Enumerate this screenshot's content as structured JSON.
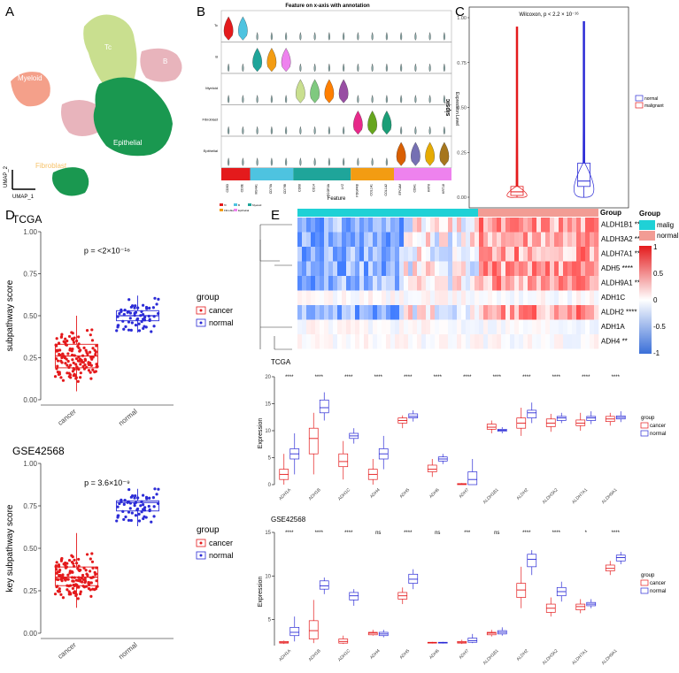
{
  "panels": {
    "A": "A",
    "B": "B",
    "C": "C",
    "D": "D",
    "E": "E"
  },
  "umap": {
    "xlabel": "UMAP_1",
    "ylabel": "UMAP_2",
    "clusters": [
      {
        "label": "Tc",
        "color": "#c9df8f"
      },
      {
        "label": "B",
        "color": "#e8b4bc"
      },
      {
        "label": "Myeloid",
        "color": "#f4a08a"
      },
      {
        "label": "Epithelial",
        "color": "#1a9850"
      },
      {
        "label": "Fibroblast",
        "color": "#f6c36b"
      }
    ]
  },
  "violin": {
    "title": "Feature on x-axis with annotation",
    "xlabel": "Feature",
    "rows": [
      "Tc",
      "B",
      "Myeloid",
      "Fibroblast",
      "Epithelial"
    ],
    "features": [
      "CD3D",
      "CD3E",
      "MS4A1",
      "CD79A",
      "CD79B",
      "CD68",
      "CD14",
      "FCGR3A",
      "LYZ",
      "PDGFRB",
      "COL1A1",
      "COL1A2",
      "EPCAM",
      "CDH1",
      "KRT8",
      "KRT18"
    ],
    "groups": [
      {
        "name": "Tc",
        "color": "#e41a1c",
        "span": 2
      },
      {
        "name": "B",
        "color": "#4ec3e0",
        "span": 3
      },
      {
        "name": "Myeloid",
        "color": "#1fa59a",
        "span": 4
      },
      {
        "name": "Fibroblast",
        "color": "#f39c12",
        "span": 3
      },
      {
        "name": "Epithelial",
        "color": "#ee82ee",
        "span": 4
      }
    ],
    "ylabel": "Expression Level"
  },
  "chart_data": [
    {
      "panel": "C",
      "type": "box",
      "title": "Wilcoxon, p < 2.2 × 10⁻¹⁶",
      "ylabel": "sipsic",
      "categories": [
        "malignant",
        "normal"
      ],
      "ylim": [
        0,
        1
      ],
      "yticks": [
        "0.00",
        "0.25",
        "0.50",
        "0.75",
        "1.00"
      ],
      "legend": [
        "normal",
        "malignant"
      ],
      "boxes": [
        {
          "name": "malignant",
          "color": "#e41a1c",
          "q1": 0.01,
          "median": 0.03,
          "q3": 0.06,
          "whisker_low": 0.0,
          "whisker_high": 0.95
        },
        {
          "name": "normal",
          "color": "#2b2bd6",
          "q1": 0.06,
          "median": 0.09,
          "q3": 0.19,
          "whisker_low": 0.0,
          "whisker_high": 0.98
        }
      ]
    },
    {
      "panel": "D-top",
      "type": "box",
      "title": "TCGA",
      "ylabel": "subpathway score",
      "categories": [
        "cancer",
        "normal"
      ],
      "ylim": [
        0,
        1
      ],
      "yticks": [
        "0.00",
        "0.25",
        "0.50",
        "0.75",
        "1.00"
      ],
      "annotation": "p = <2×10⁻¹⁶",
      "legend_title": "group",
      "legend": [
        "cancer",
        "normal"
      ],
      "boxes": [
        {
          "name": "cancer",
          "color": "#e41a1c",
          "q1": 0.19,
          "median": 0.26,
          "q3": 0.33,
          "whisker_low": 0.05,
          "whisker_high": 0.5
        },
        {
          "name": "normal",
          "color": "#2b2bd6",
          "q1": 0.47,
          "median": 0.5,
          "q3": 0.53,
          "whisker_low": 0.4,
          "whisker_high": 0.62
        }
      ]
    },
    {
      "panel": "D-bottom",
      "type": "box",
      "title": "GSE42568",
      "ylabel": "key subpathway score",
      "categories": [
        "cancer",
        "normal"
      ],
      "ylim": [
        0,
        1
      ],
      "yticks": [
        "0.00",
        "0.25",
        "0.50",
        "0.75",
        "1.00"
      ],
      "annotation": "p = 3.6×10⁻⁹",
      "legend_title": "group",
      "legend": [
        "cancer",
        "normal"
      ],
      "boxes": [
        {
          "name": "cancer",
          "color": "#e41a1c",
          "q1": 0.28,
          "median": 0.33,
          "q3": 0.39,
          "whisker_low": 0.15,
          "whisker_high": 0.59
        },
        {
          "name": "normal",
          "color": "#2b2bd6",
          "q1": 0.72,
          "median": 0.77,
          "q3": 0.78,
          "whisker_low": 0.63,
          "whisker_high": 0.85
        }
      ]
    },
    {
      "panel": "E-heatmap",
      "type": "heatmap",
      "rows": [
        "ALDH1B1 ****",
        "ALDH3A2 ****",
        "ALDH7A1 ****",
        "ADH5 ****",
        "ALDH9A1 ****",
        "ADH1C",
        "ALDH2 ****",
        "ADH1A",
        "ADH4 **"
      ],
      "group_bar": [
        {
          "name": "malig",
          "color": "#1fd1d6",
          "fraction": 0.6
        },
        {
          "name": "normal",
          "color": "#f29c94",
          "fraction": 0.4
        }
      ],
      "legend_title": "Group",
      "legend": [
        "malig",
        "normal"
      ],
      "colorbar": {
        "min": -1,
        "max": 1,
        "ticks": [
          "1",
          "0.5",
          "0",
          "-0.5",
          "-1"
        ]
      }
    },
    {
      "panel": "E-TCGA",
      "type": "box",
      "title": "TCGA",
      "ylabel": "Expression",
      "ylim": [
        0,
        20
      ],
      "yticks": [
        "0",
        "5",
        "10",
        "15",
        "20"
      ],
      "categories": [
        "ADH1A",
        "ADH1B",
        "ADH1C",
        "ADH4",
        "ADH5",
        "ADH6",
        "ADH7",
        "ALDH1B1",
        "ALDH2",
        "ALDH3A2",
        "ALDH7A1",
        "ALDH9A1"
      ],
      "significance": [
        "****",
        "****",
        "****",
        "****",
        "****",
        "****",
        "****",
        "****",
        "****",
        "****",
        "****",
        "****"
      ],
      "legend_title": "group",
      "legend": [
        "cancer",
        "normal"
      ],
      "series": [
        {
          "name": "cancer",
          "color": "#e41a1c",
          "boxes": [
            [
              1,
              2,
              3,
              0,
              6
            ],
            [
              6,
              9,
              11,
              2,
              14
            ],
            [
              3.5,
              4.5,
              6,
              1,
              8.5
            ],
            [
              1,
              2,
              3,
              0,
              5
            ],
            [
              12,
              12.5,
              13,
              11,
              13.5
            ],
            [
              2.5,
              3,
              3.8,
              1.5,
              5
            ],
            [
              0,
              0.1,
              0.2,
              0,
              0.3
            ],
            [
              10.8,
              11.2,
              11.8,
              10,
              12.5
            ],
            [
              11,
              12,
              13,
              9.5,
              15
            ],
            [
              11.3,
              12,
              12.8,
              10.3,
              13.8
            ],
            [
              11.5,
              12,
              12.6,
              10.5,
              14
            ],
            [
              12.3,
              12.8,
              13.3,
              11.5,
              14
            ]
          ]
        },
        {
          "name": "normal",
          "color": "#2b2bd6",
          "boxes": [
            [
              5,
              6,
              7,
              2,
              10
            ],
            [
              14,
              15,
              16.5,
              12.5,
              18
            ],
            [
              9,
              9.5,
              10,
              8,
              11
            ],
            [
              5,
              6,
              7,
              3,
              9.5
            ],
            [
              13,
              13.3,
              13.8,
              12.3,
              14.5
            ],
            [
              4.6,
              5,
              5.4,
              4,
              6
            ],
            [
              0,
              1,
              2.5,
              0,
              5
            ],
            [
              10.4,
              10.6,
              10.8,
              10,
              11.2
            ],
            [
              13,
              14,
              14.5,
              12,
              16
            ],
            [
              12.5,
              13,
              13.3,
              12,
              14
            ],
            [
              12.5,
              13,
              13.3,
              11.8,
              14.3
            ],
            [
              12.8,
              13.1,
              13.4,
              12.2,
              14.3
            ]
          ]
        }
      ]
    },
    {
      "panel": "E-GSE42568",
      "type": "box",
      "title": "GSE42568",
      "ylabel": "Expression",
      "ylim": [
        2,
        15
      ],
      "yticks": [
        "5",
        "10",
        "15"
      ],
      "categories": [
        "ADH1A",
        "ADH1B",
        "ADH1C",
        "ADH4",
        "ADH5",
        "ADH6",
        "ADH7",
        "ALDH1B1",
        "ALDH2",
        "ALDH3A2",
        "ALDH7A1",
        "ALDH9A1"
      ],
      "significance": [
        "****",
        "****",
        "****",
        "ns",
        "****",
        "ns",
        "***",
        "ns",
        "****",
        "****",
        "*",
        "****"
      ],
      "legend_title": "group",
      "legend": [
        "cancer",
        "normal"
      ],
      "series": [
        {
          "name": "cancer",
          "color": "#e41a1c",
          "boxes": [
            [
              2.3,
              2.4,
              2.5,
              2.2,
              2.6
            ],
            [
              2.8,
              3.8,
              5,
              2.3,
              7.5
            ],
            [
              2.3,
              2.5,
              2.8,
              2.2,
              3.2
            ],
            [
              3.3,
              3.5,
              3.6,
              3.2,
              3.9
            ],
            [
              7.6,
              8,
              8.4,
              7,
              9
            ],
            [
              2.3,
              2.35,
              2.4,
              2.25,
              2.45
            ],
            [
              2.3,
              2.4,
              2.5,
              2.2,
              2.7
            ],
            [
              3.3,
              3.5,
              3.6,
              3.1,
              3.9
            ],
            [
              7.8,
              8.7,
              9.5,
              6.5,
              11.5
            ],
            [
              6,
              6.5,
              7,
              5.5,
              7.8
            ],
            [
              6.3,
              6.7,
              7,
              5.9,
              7.6
            ],
            [
              11,
              11.3,
              11.7,
              10.5,
              12.2
            ]
          ]
        },
        {
          "name": "normal",
          "color": "#2b2bd6",
          "boxes": [
            [
              3.2,
              3.6,
              4.2,
              2.5,
              5.5
            ],
            [
              8.8,
              9.2,
              9.8,
              8.2,
              10.2
            ],
            [
              7.5,
              8,
              8.4,
              6.8,
              8.8
            ],
            [
              3.2,
              3.4,
              3.6,
              3.0,
              3.9
            ],
            [
              9.5,
              10,
              10.6,
              8.8,
              11.2
            ],
            [
              2.3,
              2.35,
              2.4,
              2.25,
              2.45
            ],
            [
              2.4,
              2.6,
              2.9,
              2.3,
              3.4
            ],
            [
              3.4,
              3.6,
              3.8,
              3.2,
              4.2
            ],
            [
              11.5,
              12.4,
              13,
              10.5,
              13.5
            ],
            [
              8,
              8.5,
              9,
              7.3,
              9.7
            ],
            [
              6.8,
              7,
              7.2,
              6.5,
              7.6
            ],
            [
              12.2,
              12.6,
              12.9,
              11.8,
              13.3
            ]
          ]
        }
      ]
    }
  ]
}
